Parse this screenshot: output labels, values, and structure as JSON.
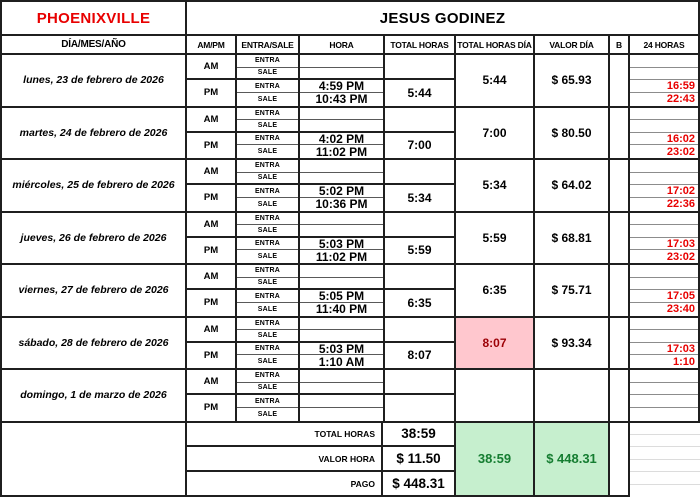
{
  "header": {
    "location": "PHOENIXVILLE",
    "employee": "JESUS GODINEZ"
  },
  "columns": {
    "day": "DÍA/MES/AÑO",
    "ampm": "AM/PM",
    "entra_sale": "ENTRA/SALE",
    "hora": "HORA",
    "total_horas": "TOTAL HORAS",
    "total_horas_dia": "TOTAL HORAS DÍA",
    "valor_dia": "VALOR DÍA",
    "b": "B",
    "h24": "24 HORAS"
  },
  "row_labels": {
    "am": "AM",
    "pm": "PM",
    "entra": "ENTRA",
    "sale": "SALE"
  },
  "days": [
    {
      "name": "lunes, 23 de febrero de 2026",
      "am_entra": "",
      "am_sale": "",
      "pm_entra": "4:59 PM",
      "pm_sale": "10:43 PM",
      "total_am": "",
      "total_pm": "5:44",
      "total_dia": "5:44",
      "valor_dia": "$ 65.93",
      "h24": [
        "",
        "",
        "16:59",
        "22:43"
      ],
      "highlight": false
    },
    {
      "name": "martes, 24 de febrero de 2026",
      "am_entra": "",
      "am_sale": "",
      "pm_entra": "4:02 PM",
      "pm_sale": "11:02 PM",
      "total_am": "",
      "total_pm": "7:00",
      "total_dia": "7:00",
      "valor_dia": "$ 80.50",
      "h24": [
        "",
        "",
        "16:02",
        "23:02"
      ],
      "highlight": false
    },
    {
      "name": "miércoles, 25 de febrero de 2026",
      "am_entra": "",
      "am_sale": "",
      "pm_entra": "5:02 PM",
      "pm_sale": "10:36 PM",
      "total_am": "",
      "total_pm": "5:34",
      "total_dia": "5:34",
      "valor_dia": "$ 64.02",
      "h24": [
        "",
        "",
        "17:02",
        "22:36"
      ],
      "highlight": false
    },
    {
      "name": "jueves, 26 de febrero de 2026",
      "am_entra": "",
      "am_sale": "",
      "pm_entra": "5:03 PM",
      "pm_sale": "11:02 PM",
      "total_am": "",
      "total_pm": "5:59",
      "total_dia": "5:59",
      "valor_dia": "$ 68.81",
      "h24": [
        "",
        "",
        "17:03",
        "23:02"
      ],
      "highlight": false
    },
    {
      "name": "viernes, 27 de febrero de 2026",
      "am_entra": "",
      "am_sale": "",
      "pm_entra": "5:05 PM",
      "pm_sale": "11:40 PM",
      "total_am": "",
      "total_pm": "6:35",
      "total_dia": "6:35",
      "valor_dia": "$ 75.71",
      "h24": [
        "",
        "",
        "17:05",
        "23:40"
      ],
      "highlight": false
    },
    {
      "name": "sábado, 28 de febrero de 2026",
      "am_entra": "",
      "am_sale": "",
      "pm_entra": "5:03 PM",
      "pm_sale": "1:10 AM",
      "total_am": "",
      "total_pm": "8:07",
      "total_dia": "8:07",
      "valor_dia": "$ 93.34",
      "h24": [
        "",
        "",
        "17:03",
        "1:10"
      ],
      "highlight": true
    },
    {
      "name": "domingo, 1 de marzo de 2026",
      "am_entra": "",
      "am_sale": "",
      "pm_entra": "",
      "pm_sale": "",
      "total_am": "",
      "total_pm": "",
      "total_dia": "",
      "valor_dia": "",
      "h24": [
        "",
        "",
        "",
        ""
      ],
      "highlight": false
    }
  ],
  "summary": {
    "total_horas_label": "TOTAL HORAS",
    "total_horas_value": "38:59",
    "valor_hora_label": "VALOR HORA",
    "valor_hora_value": "$ 11.50",
    "pago_label": "PAGO",
    "pago_value": "$ 448.31",
    "total_horas_green": "38:59",
    "pago_green": "$ 448.31"
  },
  "colors": {
    "title_red": "#e80000",
    "h24_red": "#e80000",
    "bad_cell_bg": "#ffc7ce",
    "bad_cell_text": "#9c0006",
    "good_cell_bg": "#c6efce",
    "good_cell_text": "#157d31",
    "border_dark": "#1f1f1f"
  }
}
